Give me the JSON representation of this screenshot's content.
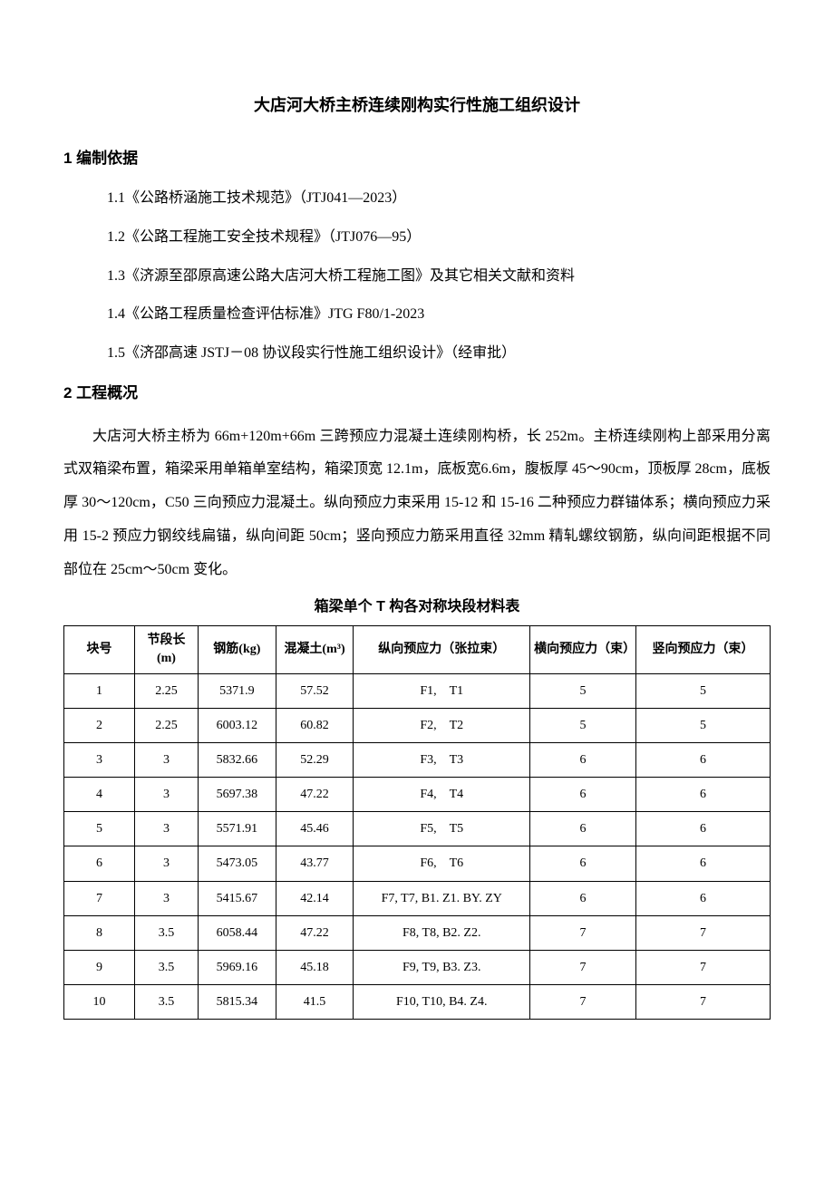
{
  "title": "大店河大桥主桥连续刚构实行性施工组织设计",
  "section1": {
    "heading": "1  编制依据",
    "items": [
      "1.1《公路桥涵施工技术规范》（JTJ041—2023）",
      "1.2《公路工程施工安全技术规程》（JTJ076—95）",
      "1.3《济源至邵原高速公路大店河大桥工程施工图》及其它相关文献和资料",
      "1.4《公路工程质量检查评估标准》JTG F80/1-2023",
      "1.5《济邵高速 JSTJ－08 协议段实行性施工组织设计》（经审批）"
    ]
  },
  "section2": {
    "heading": "2  工程概况",
    "paragraph": "大店河大桥主桥为 66m+120m+66m 三跨预应力混凝土连续刚构桥，长 252m。主桥连续刚构上部采用分离式双箱梁布置，箱梁采用单箱单室结构，箱梁顶宽 12.1m，底板宽6.6m，腹板厚 45～90cm，顶板厚 28cm，底板厚 30～120cm，C50 三向预应力混凝土。纵向预应力束采用 15-12 和 15-16 二种预应力群锚体系；横向预应力采用 15-2 预应力钢绞线扁锚，纵向间距 50cm；竖向预应力筋采用直径 32mm 精轧螺纹钢筋，纵向间距根据不同部位在 25cm～50cm 变化。"
  },
  "table": {
    "caption": "箱梁单个 T 构各对称块段材料表",
    "columns": [
      "块号",
      "节段长(m)",
      "钢筋(kg)",
      "混凝土(m³)",
      "纵向预应力（张拉束）",
      "横向预应力（束）",
      "竖向预应力（束）"
    ],
    "col_widths": [
      "10%",
      "9%",
      "11%",
      "11%",
      "25%",
      "15%",
      "19%"
    ],
    "rows": [
      [
        "1",
        "2.25",
        "5371.9",
        "57.52",
        "F1,　T1",
        "5",
        "5"
      ],
      [
        "2",
        "2.25",
        "6003.12",
        "60.82",
        "F2,　T2",
        "5",
        "5"
      ],
      [
        "3",
        "3",
        "5832.66",
        "52.29",
        "F3,　T3",
        "6",
        "6"
      ],
      [
        "4",
        "3",
        "5697.38",
        "47.22",
        "F4,　T4",
        "6",
        "6"
      ],
      [
        "5",
        "3",
        "5571.91",
        "45.46",
        "F5,　T5",
        "6",
        "6"
      ],
      [
        "6",
        "3",
        "5473.05",
        "43.77",
        "F6,　T6",
        "6",
        "6"
      ],
      [
        "7",
        "3",
        "5415.67",
        "42.14",
        "F7, T7, B1. Z1. BY. ZY",
        "6",
        "6"
      ],
      [
        "8",
        "3.5",
        "6058.44",
        "47.22",
        "F8, T8, B2. Z2.",
        "7",
        "7"
      ],
      [
        "9",
        "3.5",
        "5969.16",
        "45.18",
        "F9, T9, B3. Z3.",
        "7",
        "7"
      ],
      [
        "10",
        "3.5",
        "5815.34",
        "41.5",
        "F10, T10, B4. Z4.",
        "7",
        "7"
      ]
    ]
  },
  "styling": {
    "background_color": "#ffffff",
    "text_color": "#000000",
    "border_color": "#000000",
    "body_fontsize": 16,
    "title_fontsize": 18,
    "table_fontsize": 14
  }
}
